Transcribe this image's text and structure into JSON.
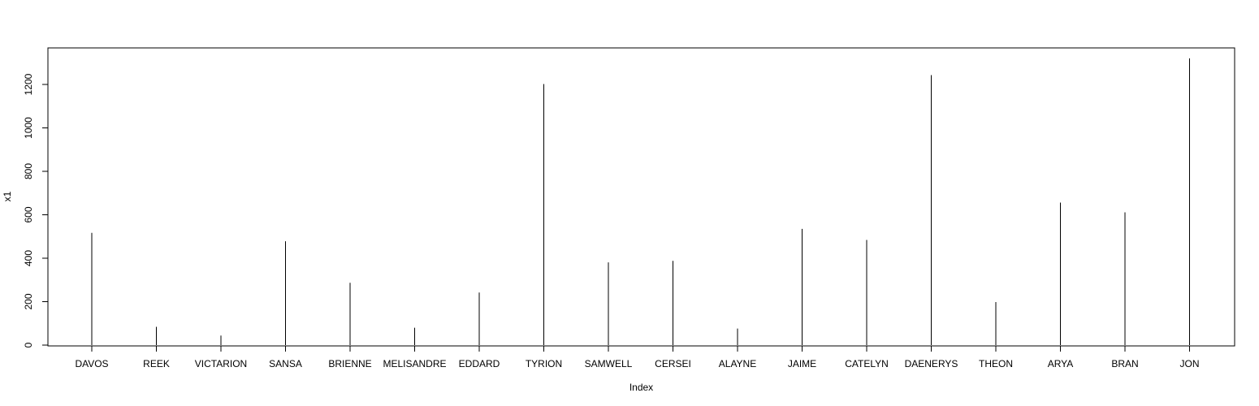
{
  "chart_data": {
    "type": "bar",
    "style": "vertical-lines",
    "xlabel": "Index",
    "ylabel": "x1",
    "ylim": [
      0,
      1320
    ],
    "y_ticks": [
      0,
      200,
      400,
      600,
      800,
      1000,
      1200
    ],
    "grid": false,
    "categories": [
      "DAVOS",
      "REEK",
      "VICTARION",
      "SANSA",
      "BRIENNE",
      "MELISANDRE",
      "EDDARD",
      "TYRION",
      "SAMWELL",
      "CERSEI",
      "ALAYNE",
      "JAIME",
      "CATELYN",
      "DAENERYS",
      "THEON",
      "ARYA",
      "BRAN",
      "JON"
    ],
    "values": [
      517,
      84,
      44,
      478,
      287,
      80,
      242,
      1202,
      381,
      388,
      76,
      535,
      484,
      1243,
      198,
      656,
      611,
      1320
    ],
    "colors": {
      "line": "#000000",
      "axis": "#000000",
      "background": "#ffffff"
    }
  }
}
